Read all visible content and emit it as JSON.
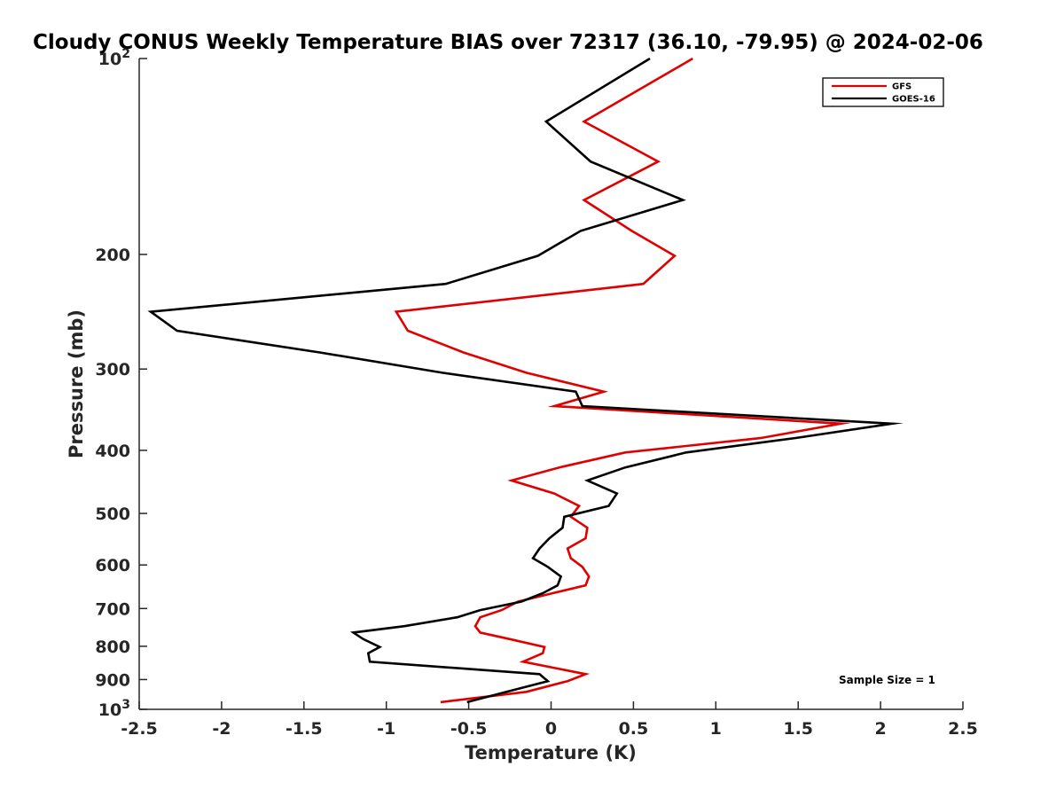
{
  "chart_data": {
    "type": "line",
    "title": "Cloudy CONUS Weekly Temperature BIAS over 72317 (36.10, -79.95) @ 2024-02-06",
    "xlabel": "Temperature (K)",
    "ylabel": "Pressure (mb)",
    "xlim": [
      -2.5,
      2.5
    ],
    "ylim": [
      100,
      1000
    ],
    "y_scale": "log",
    "y_reversed": true,
    "grid": false,
    "legend_position": "top-right",
    "x_ticks": [
      -2.5,
      -2,
      -1.5,
      -1,
      -0.5,
      0,
      0.5,
      1,
      1.5,
      2,
      2.5
    ],
    "x_tick_labels": [
      "-2.5",
      "-2",
      "-1.5",
      "-1",
      "-0.5",
      "0",
      "0.5",
      "1",
      "1.5",
      "2",
      "2.5"
    ],
    "y_ticks": [
      {
        "value": 100,
        "base": "10",
        "exp": "2"
      },
      {
        "value": 200,
        "label": "200"
      },
      {
        "value": 300,
        "label": "300"
      },
      {
        "value": 400,
        "label": "400"
      },
      {
        "value": 500,
        "label": "500"
      },
      {
        "value": 600,
        "label": "600"
      },
      {
        "value": 700,
        "label": "700"
      },
      {
        "value": 800,
        "label": "800"
      },
      {
        "value": 900,
        "label": "900"
      },
      {
        "value": 1000,
        "base": "10",
        "exp": "3"
      }
    ],
    "series": [
      {
        "name": "GFS",
        "color": "#e00000",
        "points": [
          [
            0.86,
            100
          ],
          [
            0.2,
            125
          ],
          [
            0.65,
            144
          ],
          [
            0.2,
            165
          ],
          [
            0.49,
            184
          ],
          [
            0.75,
            201
          ],
          [
            0.56,
            222
          ],
          [
            -0.94,
            245
          ],
          [
            -0.87,
            262
          ],
          [
            -0.53,
            283
          ],
          [
            -0.15,
            304
          ],
          [
            0.32,
            325
          ],
          [
            0.02,
            342
          ],
          [
            1.76,
            364
          ],
          [
            1.27,
            383
          ],
          [
            0.45,
            403
          ],
          [
            0.05,
            425
          ],
          [
            -0.24,
            445
          ],
          [
            0.02,
            466
          ],
          [
            0.17,
            487
          ],
          [
            0.12,
            506
          ],
          [
            0.22,
            526
          ],
          [
            0.21,
            546
          ],
          [
            0.1,
            566
          ],
          [
            0.12,
            586
          ],
          [
            0.19,
            604
          ],
          [
            0.23,
            625
          ],
          [
            0.21,
            645
          ],
          [
            0.01,
            663
          ],
          [
            -0.2,
            683
          ],
          [
            -0.3,
            704
          ],
          [
            -0.43,
            722
          ],
          [
            -0.46,
            745
          ],
          [
            -0.43,
            762
          ],
          [
            -0.25,
            780
          ],
          [
            -0.04,
            802
          ],
          [
            -0.05,
            820
          ],
          [
            -0.17,
            845
          ],
          [
            0.21,
            883
          ],
          [
            0.1,
            905
          ],
          [
            -0.15,
            940
          ],
          [
            -0.67,
            975
          ]
        ]
      },
      {
        "name": "GOES-16",
        "color": "#000000",
        "points": [
          [
            0.6,
            100
          ],
          [
            -0.03,
            125
          ],
          [
            0.24,
            144
          ],
          [
            0.8,
            165
          ],
          [
            0.18,
            184
          ],
          [
            -0.08,
            201
          ],
          [
            -0.64,
            222
          ],
          [
            -2.43,
            245
          ],
          [
            -2.27,
            262
          ],
          [
            -1.4,
            283
          ],
          [
            -0.66,
            304
          ],
          [
            0.15,
            325
          ],
          [
            0.19,
            342
          ],
          [
            2.07,
            364
          ],
          [
            1.48,
            383
          ],
          [
            0.82,
            403
          ],
          [
            0.45,
            425
          ],
          [
            0.22,
            445
          ],
          [
            0.4,
            466
          ],
          [
            0.35,
            487
          ],
          [
            0.08,
            506
          ],
          [
            0.07,
            526
          ],
          [
            -0.01,
            546
          ],
          [
            -0.07,
            566
          ],
          [
            -0.11,
            586
          ],
          [
            -0.02,
            604
          ],
          [
            0.06,
            625
          ],
          [
            0.04,
            645
          ],
          [
            -0.05,
            663
          ],
          [
            -0.18,
            683
          ],
          [
            -0.43,
            704
          ],
          [
            -0.57,
            722
          ],
          [
            -0.89,
            745
          ],
          [
            -1.2,
            762
          ],
          [
            -1.14,
            780
          ],
          [
            -1.04,
            802
          ],
          [
            -1.11,
            820
          ],
          [
            -1.1,
            845
          ],
          [
            -0.07,
            883
          ],
          [
            -0.02,
            905
          ],
          [
            -0.27,
            940
          ],
          [
            -0.51,
            975
          ]
        ]
      }
    ],
    "annotation": "Sample Size = 1"
  }
}
